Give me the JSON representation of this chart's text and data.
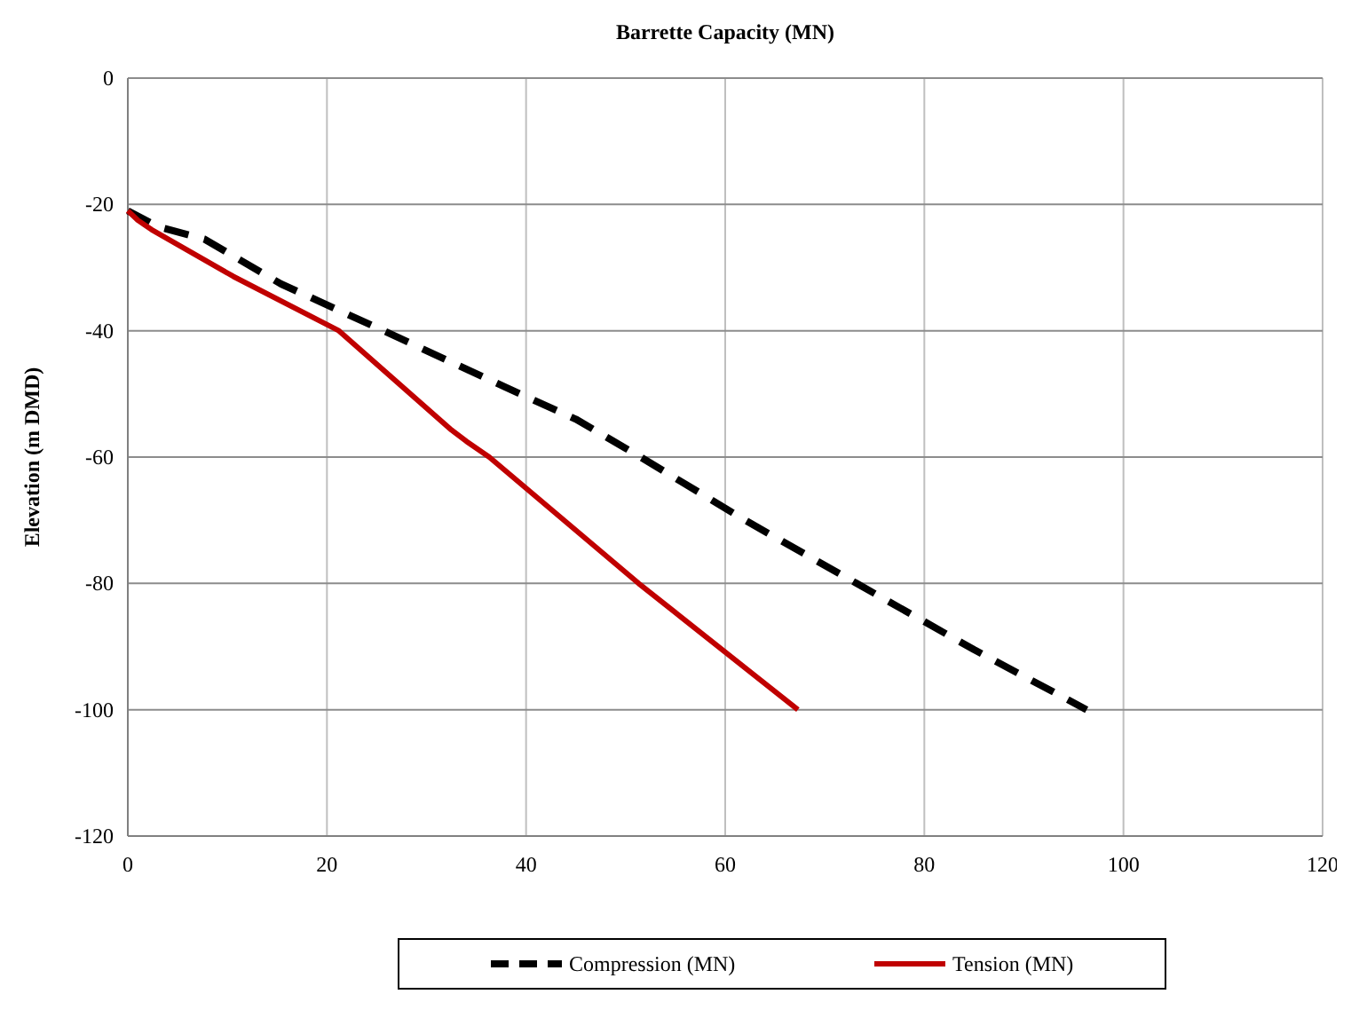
{
  "chart_data": {
    "type": "line",
    "title": "Barrette Capacity  (MN)",
    "ylabel": "Elevation  (m DMD)",
    "xlim": [
      0,
      120
    ],
    "xticks": [
      0,
      20,
      40,
      60,
      80,
      100,
      120
    ],
    "ylim": [
      -120,
      0
    ],
    "yticks": [
      -120,
      -100,
      -80,
      -60,
      -40,
      -20,
      0
    ],
    "grid": true,
    "legend": "bottom",
    "marker": "none",
    "series": [
      {
        "name": "Compression (MN)",
        "color": "#000000",
        "line_style": "dashed",
        "x": [
          0,
          3,
          7.7,
          15.4,
          25.7,
          38,
          45,
          51.5,
          62,
          73.2,
          85,
          96.3
        ],
        "values": [
          -21,
          -23.5,
          -25.5,
          -32.6,
          -40,
          -49,
          -54,
          -60,
          -70,
          -80,
          -90.5,
          -100
        ]
      },
      {
        "name": "Tension (MN)",
        "color": "#c00000",
        "line_style": "solid",
        "x": [
          0,
          1,
          2.4,
          10.6,
          21.2,
          32.5,
          34,
          36.3,
          51.3,
          67.3
        ],
        "values": [
          -21,
          -22.5,
          -24,
          -31.4,
          -40,
          -55.7,
          -57.5,
          -60,
          -80,
          -100
        ]
      }
    ]
  }
}
